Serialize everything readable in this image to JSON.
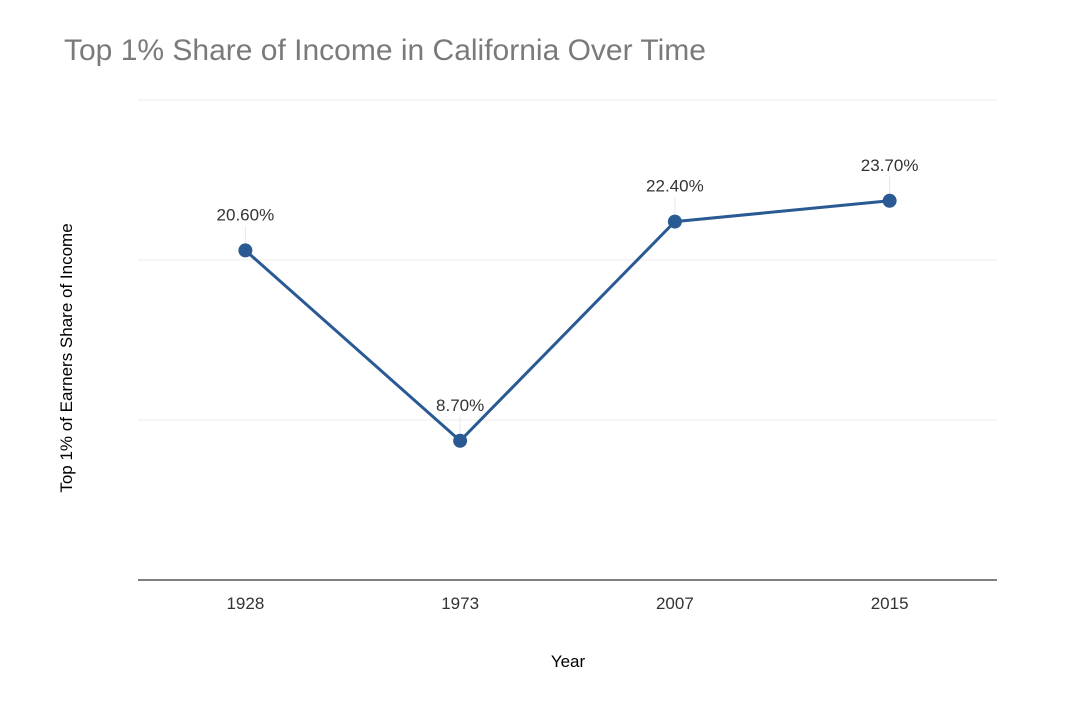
{
  "chart_data": {
    "type": "line",
    "title": "Top 1% Share of Income in California Over Time",
    "xlabel": "Year",
    "ylabel": "Top 1% of Earners Share of Income",
    "categories": [
      "1928",
      "1973",
      "2007",
      "2015"
    ],
    "series": [
      {
        "values": [
          20.6,
          8.7,
          22.4,
          23.7
        ],
        "labels": [
          "20.60%",
          "8.70%",
          "22.40%",
          "23.70%"
        ],
        "color": "#2a5a94"
      }
    ],
    "ylim": [
      0,
      30
    ],
    "grid": true,
    "legend": "none"
  }
}
